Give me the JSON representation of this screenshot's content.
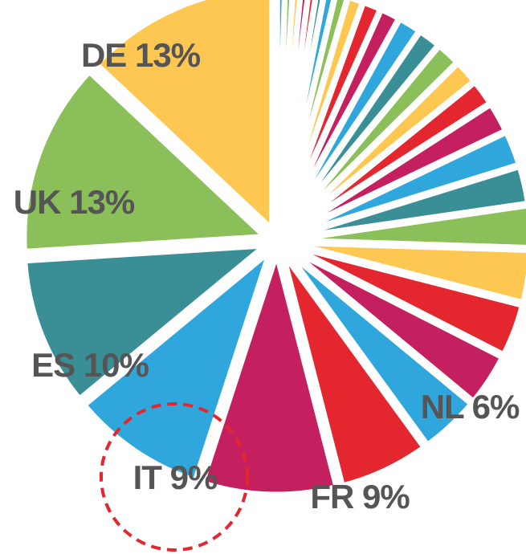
{
  "chart_data": {
    "type": "pie",
    "categories": [
      null,
      null,
      null,
      null,
      null,
      null,
      null,
      null,
      null,
      null,
      null,
      null,
      null,
      null,
      null,
      null,
      null,
      null,
      null,
      null,
      null,
      null,
      null,
      null,
      "NL",
      "FR",
      "IT",
      "ES",
      "UK",
      "DE"
    ],
    "values": [
      0.5,
      0.5,
      0.5,
      0.5,
      0.5,
      0.5,
      0.7,
      0.8,
      1,
      1.2,
      1.3,
      1.5,
      1.5,
      1.6,
      1.6,
      1.7,
      2,
      2.3,
      2.5,
      2.8,
      3.5,
      3.5,
      3.5,
      4,
      6,
      9,
      9,
      10,
      13,
      13
    ],
    "value_labels": [
      null,
      null,
      null,
      null,
      null,
      null,
      null,
      null,
      null,
      null,
      null,
      null,
      null,
      null,
      null,
      null,
      null,
      null,
      null,
      null,
      null,
      null,
      null,
      null,
      "6%",
      "9%",
      "9%",
      "10%",
      "13%",
      "13%"
    ],
    "colors": [
      "#2fa6dc",
      "#8bbf5a",
      "#fdc751",
      "#c41f5f",
      "#e4262f",
      "#3a8f96",
      "#2fa6dc",
      "#8bbf5a",
      "#fdc751",
      "#e4262f",
      "#c41f5f",
      "#2fa6dc",
      "#3a8f96",
      "#8bbf5a",
      "#fdc751",
      "#e4262f",
      "#c41f5f",
      "#2fa6dc",
      "#3a8f96",
      "#8bbf5a",
      "#fdc751",
      "#e4262f",
      "#c41f5f",
      "#2fa6dc",
      "#e4262f",
      "#c41f5f",
      "#2fa6dc",
      "#3a8f96",
      "#8bbf5a",
      "#fdc751"
    ]
  }
}
